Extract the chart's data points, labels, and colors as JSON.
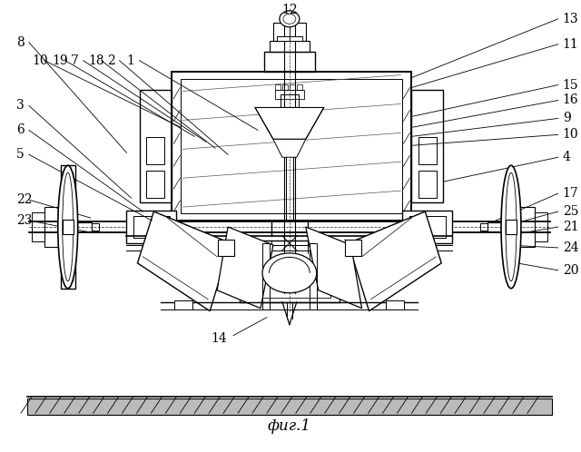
{
  "caption": "фиг.1",
  "bg_color": "#ffffff",
  "caption_fontsize": 12,
  "label_fontsize": 10
}
